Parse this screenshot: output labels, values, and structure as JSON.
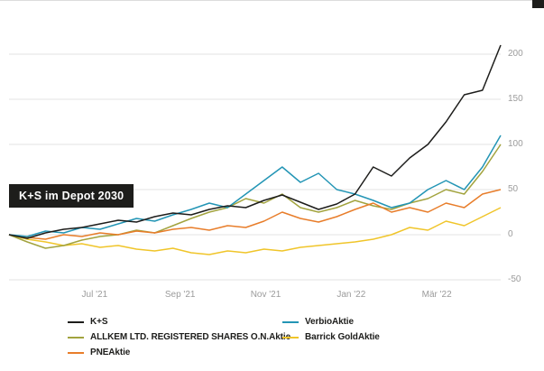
{
  "tooltip": {
    "text": "K+S im Depot 2030",
    "bg": "#1d1d1b",
    "color": "#ffffff"
  },
  "chart_data": {
    "type": "line",
    "title": "",
    "xlabel": "",
    "ylabel": "",
    "x_range": [
      "Mai '21",
      "Apr '22"
    ],
    "ylim": [
      -55,
      215
    ],
    "yticks": [
      -50,
      0,
      50,
      100,
      150,
      200
    ],
    "xticks": [
      {
        "label": "Jul '21",
        "pos": 0.174
      },
      {
        "label": "Sep '21",
        "pos": 0.348
      },
      {
        "label": "Nov '21",
        "pos": 0.522
      },
      {
        "label": "Jan '22",
        "pos": 0.696
      },
      {
        "label": "Mär '22",
        "pos": 0.87
      }
    ],
    "grid": true,
    "legend_position": "bottom",
    "value_unit": "percent change",
    "series": [
      {
        "name": "Barrick GoldAktie",
        "color": "#f0c52a",
        "values": [
          0,
          -5,
          -8,
          -12,
          -10,
          -14,
          -12,
          -16,
          -18,
          -15,
          -20,
          -22,
          -18,
          -20,
          -16,
          -18,
          -14,
          -12,
          -10,
          -8,
          -5,
          0,
          8,
          5,
          15,
          10,
          20,
          30
        ]
      },
      {
        "name": "ALLKEM LTD. REGISTERED SHARES O.N.Aktie",
        "color": "#a2a33e",
        "values": [
          0,
          -8,
          -15,
          -12,
          -6,
          -2,
          0,
          5,
          2,
          10,
          18,
          25,
          30,
          40,
          35,
          45,
          30,
          25,
          30,
          38,
          32,
          28,
          35,
          40,
          50,
          45,
          70,
          100
        ]
      },
      {
        "name": "PNEAktie",
        "color": "#e87d2a",
        "values": [
          0,
          -3,
          -5,
          0,
          -2,
          2,
          0,
          4,
          2,
          6,
          8,
          5,
          10,
          8,
          15,
          25,
          18,
          14,
          20,
          28,
          35,
          25,
          30,
          25,
          35,
          30,
          45,
          50
        ]
      },
      {
        "name": "VerbioAktie",
        "color": "#2395b5",
        "values": [
          0,
          -2,
          4,
          2,
          8,
          6,
          12,
          18,
          15,
          22,
          28,
          35,
          30,
          45,
          60,
          75,
          58,
          68,
          50,
          45,
          38,
          30,
          35,
          50,
          60,
          50,
          75,
          110
        ]
      },
      {
        "name": "K+S",
        "color": "#1d1d1b",
        "values": [
          0,
          -4,
          2,
          6,
          8,
          12,
          16,
          14,
          20,
          24,
          22,
          28,
          32,
          30,
          38,
          44,
          36,
          28,
          34,
          45,
          75,
          65,
          85,
          100,
          125,
          155,
          160,
          210
        ]
      }
    ]
  },
  "legend": {
    "items": [
      {
        "label": "K+S",
        "color": "#1d1d1b"
      },
      {
        "label": "VerbioAktie",
        "color": "#2395b5"
      },
      {
        "label": "ALLKEM LTD. REGISTERED SHARES O.N.Aktie",
        "color": "#a2a33e"
      },
      {
        "label": "Barrick GoldAktie",
        "color": "#f0c52a"
      },
      {
        "label": "PNEAktie",
        "color": "#e87d2a"
      }
    ]
  }
}
